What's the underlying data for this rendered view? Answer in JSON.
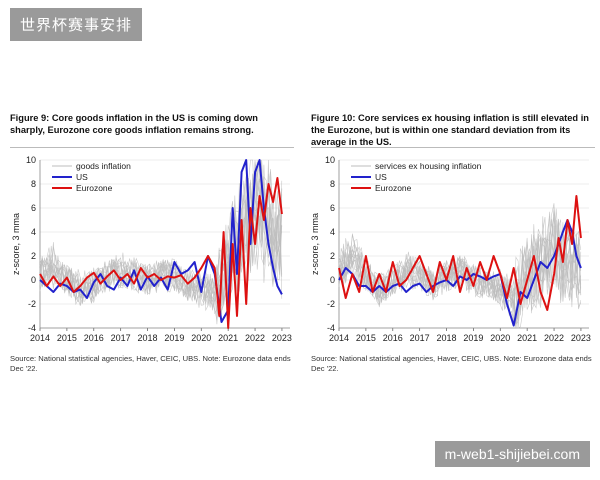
{
  "watermark_top": "世界杯赛事安排",
  "watermark_bottom": "m-web1-shijiebei.com",
  "figures": [
    {
      "title": "Figure 9: Core goods inflation in the US is coming down sharply, Eurozone core goods inflation remains strong.",
      "source": "Source: National statistical agencies, Haver, CEIC, UBS. Note: Eurozone data ends Dec '22."
    },
    {
      "title": "Figure 10: Core services ex housing inflation is still elevated in the Eurozone, but is within one standard deviation from its average in the US.",
      "source": "Source: National statistical agencies, Haver, CEIC, UBS. Note: Eurozone data ends Dec '22."
    }
  ],
  "colors": {
    "us": "#2222cc",
    "eurozone": "#dd1111",
    "grey": "#bdbdbd",
    "grid": "#e6e6e6"
  },
  "chart_data": [
    {
      "type": "line",
      "ylabel": "z-score, 3 mma",
      "xlim": [
        2014,
        2023.3
      ],
      "ylim": [
        -4,
        10
      ],
      "yticks": [
        -4,
        -2,
        0,
        2,
        4,
        6,
        8,
        10
      ],
      "xticks": [
        "2014",
        "2015",
        "2016",
        "2017",
        "2018",
        "2019",
        "2020",
        "2021",
        "2022",
        "2023"
      ],
      "legend": "top-left",
      "series": [
        {
          "name": "goods inflation",
          "color_key": "grey",
          "x": [
            2014,
            2014.5,
            2015,
            2015.5,
            2016,
            2016.5,
            2017,
            2017.5,
            2018,
            2018.5,
            2019,
            2019.5,
            2020,
            2020.5,
            2021,
            2021.5,
            2022,
            2022.5,
            2023
          ],
          "values": [
            0.5,
            1.5,
            0,
            -1,
            -0.5,
            0.5,
            1,
            0.5,
            0,
            1,
            0.5,
            -0.5,
            -1,
            -1.5,
            2,
            5,
            8,
            6,
            4
          ]
        },
        {
          "name": "US",
          "color_key": "us",
          "x": [
            2014,
            2014.25,
            2014.5,
            2014.75,
            2015,
            2015.25,
            2015.5,
            2015.75,
            2016,
            2016.25,
            2016.5,
            2016.75,
            2017,
            2017.25,
            2017.5,
            2017.75,
            2018,
            2018.25,
            2018.5,
            2018.75,
            2019,
            2019.25,
            2019.5,
            2019.75,
            2020,
            2020.25,
            2020.5,
            2020.75,
            2021,
            2021.17,
            2021.33,
            2021.5,
            2021.67,
            2021.83,
            2022,
            2022.17,
            2022.33,
            2022.5,
            2022.67,
            2022.83,
            2023
          ],
          "values": [
            0,
            -0.5,
            -1,
            -0.3,
            -0.5,
            -1,
            -0.8,
            -1.5,
            -0.2,
            0.5,
            -0.5,
            -0.8,
            0.2,
            -0.5,
            0.8,
            -0.8,
            0.3,
            -0.5,
            0.2,
            -0.8,
            1.5,
            0.5,
            0.8,
            1.5,
            -1,
            2,
            0.5,
            -3.5,
            -2.5,
            6,
            0.5,
            9,
            10,
            3,
            9,
            10,
            6,
            3,
            1,
            -0.5,
            -1.2
          ]
        },
        {
          "name": "Eurozone",
          "color_key": "eurozone",
          "x": [
            2014,
            2014.25,
            2014.5,
            2014.75,
            2015,
            2015.25,
            2015.5,
            2015.75,
            2016,
            2016.25,
            2016.5,
            2016.75,
            2017,
            2017.25,
            2017.5,
            2017.75,
            2018,
            2018.25,
            2018.5,
            2018.75,
            2019,
            2019.25,
            2019.5,
            2019.75,
            2020,
            2020.25,
            2020.5,
            2020.67,
            2020.83,
            2021,
            2021.17,
            2021.33,
            2021.5,
            2021.67,
            2021.83,
            2022,
            2022.17,
            2022.33,
            2022.5,
            2022.67,
            2022.83,
            2023
          ],
          "values": [
            0.5,
            -0.5,
            0.3,
            -0.5,
            0.2,
            -1,
            -0.5,
            0.2,
            0.6,
            -0.3,
            0.3,
            0.8,
            0,
            0.5,
            -0.3,
            1,
            0.2,
            0.5,
            0,
            0.3,
            0.2,
            0.4,
            -0.3,
            0.2,
            1,
            2,
            1,
            -3,
            4,
            -4,
            3,
            -3,
            5,
            -2,
            6,
            3,
            7,
            5,
            8,
            6.5,
            8.5,
            5.5
          ]
        }
      ]
    },
    {
      "type": "line",
      "ylabel": "z-score, 3 mma",
      "xlim": [
        2014,
        2023.3
      ],
      "ylim": [
        -4,
        10
      ],
      "yticks": [
        -4,
        -2,
        0,
        2,
        4,
        6,
        8,
        10
      ],
      "xticks": [
        "2014",
        "2015",
        "2016",
        "2017",
        "2018",
        "2019",
        "2020",
        "2021",
        "2022",
        "2023"
      ],
      "legend": "top-left",
      "series": [
        {
          "name": "services ex housing inflation",
          "color_key": "grey",
          "x": [
            2014,
            2014.5,
            2015,
            2015.5,
            2016,
            2016.5,
            2017,
            2017.5,
            2018,
            2018.5,
            2019,
            2019.5,
            2020,
            2020.5,
            2021,
            2021.5,
            2022,
            2022.5,
            2023
          ],
          "values": [
            1,
            2.5,
            0.5,
            -1,
            0,
            1,
            0.5,
            -0.5,
            0.5,
            1,
            0,
            -0.5,
            -1,
            -2,
            0.5,
            2,
            3,
            2,
            1
          ]
        },
        {
          "name": "US",
          "color_key": "us",
          "x": [
            2014,
            2014.25,
            2014.5,
            2014.75,
            2015,
            2015.25,
            2015.5,
            2015.75,
            2016,
            2016.25,
            2016.5,
            2016.75,
            2017,
            2017.25,
            2017.5,
            2017.75,
            2018,
            2018.25,
            2018.5,
            2018.75,
            2019,
            2019.25,
            2019.5,
            2019.75,
            2020,
            2020.25,
            2020.5,
            2020.75,
            2021,
            2021.25,
            2021.5,
            2021.75,
            2022,
            2022.17,
            2022.33,
            2022.5,
            2022.67,
            2022.83,
            2023
          ],
          "values": [
            0,
            1,
            0.5,
            -0.5,
            -0.5,
            -1,
            -0.5,
            -1,
            -0.5,
            -0.3,
            -1,
            -0.5,
            -0.3,
            -1,
            -0.5,
            -0.2,
            0,
            -0.5,
            0.3,
            0,
            0.5,
            0.3,
            0,
            0.3,
            0.5,
            -2,
            -3.8,
            -1,
            -1.5,
            0,
            1.5,
            1,
            2,
            3,
            4,
            5,
            4,
            2,
            1
          ]
        },
        {
          "name": "Eurozone",
          "color_key": "eurozone",
          "x": [
            2014,
            2014.25,
            2014.5,
            2014.75,
            2015,
            2015.25,
            2015.5,
            2015.75,
            2016,
            2016.25,
            2016.5,
            2016.75,
            2017,
            2017.25,
            2017.5,
            2017.75,
            2018,
            2018.25,
            2018.5,
            2018.75,
            2019,
            2019.25,
            2019.5,
            2019.75,
            2020,
            2020.25,
            2020.5,
            2020.75,
            2021,
            2021.25,
            2021.5,
            2021.75,
            2022,
            2022.17,
            2022.33,
            2022.5,
            2022.67,
            2022.83,
            2023
          ],
          "values": [
            1,
            -1.5,
            0.5,
            -1,
            2,
            -1,
            0.5,
            -1,
            1.5,
            -0.5,
            0,
            1,
            2,
            0.5,
            -1,
            1.5,
            0,
            2,
            -1,
            1,
            -0.5,
            1.5,
            0,
            2,
            0.5,
            -1.5,
            1,
            -2,
            0,
            2,
            -1,
            -2.5,
            0.5,
            3.5,
            1.5,
            5,
            3,
            7,
            3.5
          ]
        }
      ]
    }
  ]
}
